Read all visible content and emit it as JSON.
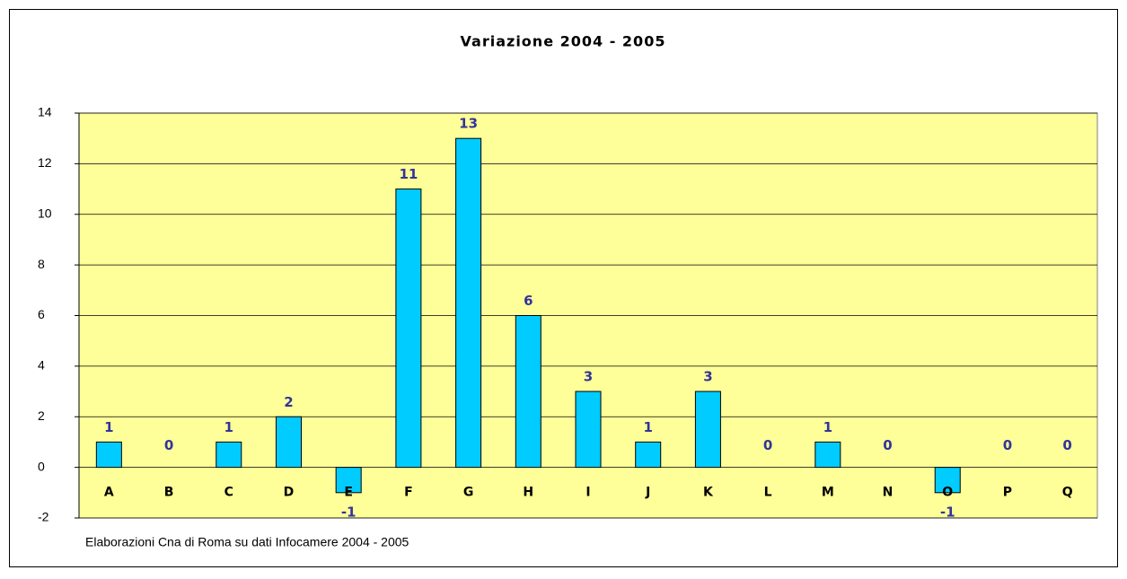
{
  "chart_data": {
    "type": "bar",
    "title": "Variazione 2004 - 2005",
    "note": "Elaborazioni Cna di Roma su dati Infocamere 2004 - 2005",
    "categories": [
      "A",
      "B",
      "C",
      "D",
      "E",
      "F",
      "G",
      "H",
      "I",
      "J",
      "K",
      "L",
      "M",
      "N",
      "O",
      "P",
      "Q"
    ],
    "values": [
      1,
      0,
      1,
      2,
      -1,
      11,
      13,
      6,
      3,
      1,
      3,
      0,
      1,
      0,
      -1,
      0,
      0
    ],
    "color": "#00ccff",
    "ylim": [
      -2,
      14
    ],
    "yticks": [
      -2,
      0,
      2,
      4,
      6,
      8,
      10,
      12,
      14
    ],
    "grid": true
  }
}
